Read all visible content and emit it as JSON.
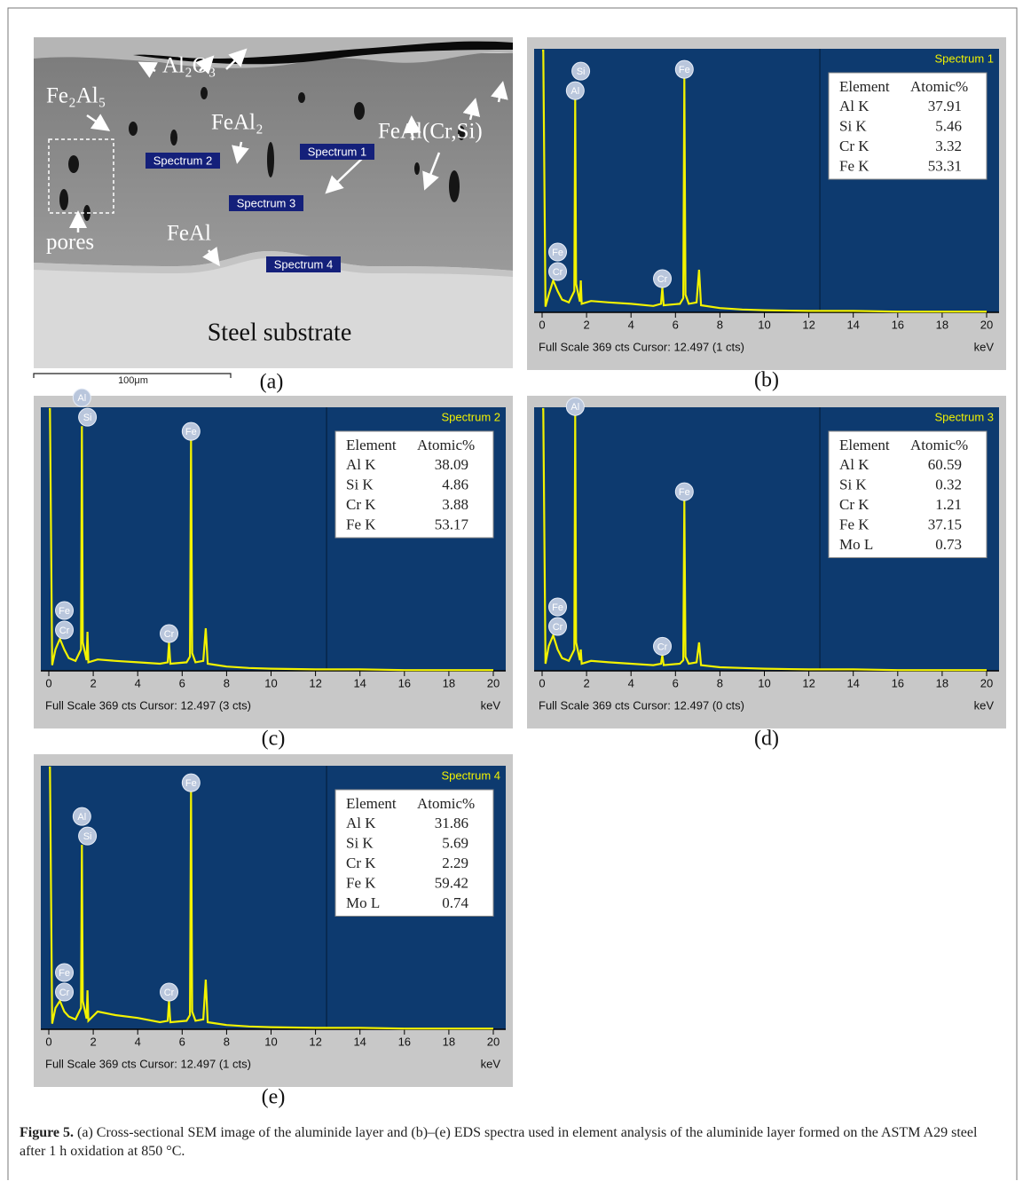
{
  "sem": {
    "phases": {
      "al2o3": "Al₂O₃",
      "fe2al5": "Fe₂Al₅",
      "feal2": "FeAl₂",
      "feal_cr_si": "FeAl(Cr,Si)",
      "pores": "pores",
      "feal": "FeAl",
      "substrate": "Steel substrate"
    },
    "spectrum_boxes": [
      "Spectrum 1",
      "Spectrum 2",
      "Spectrum 3",
      "Spectrum 4"
    ],
    "scale_bar": "100μm",
    "panel_label": "(a)"
  },
  "chart_data": [
    {
      "type": "line",
      "title": "Spectrum 1",
      "panel_label": "(b)",
      "xlabel": "keV",
      "footer": "Full Scale 369 cts Cursor: 12.497 (1 cts)",
      "cursor": 12.497,
      "color": "#f2f200",
      "x": [
        0,
        0.05,
        0.15,
        0.3,
        0.5,
        0.7,
        0.9,
        1.2,
        1.45,
        1.49,
        1.53,
        1.7,
        1.74,
        1.78,
        2.2,
        3,
        4,
        5,
        5.35,
        5.41,
        5.47,
        6.2,
        6.35,
        6.4,
        6.45,
        6.6,
        6.95,
        7.06,
        7.15,
        8,
        9,
        10,
        12,
        14,
        16,
        20
      ],
      "values": [
        369,
        369,
        8,
        25,
        45,
        30,
        18,
        14,
        30,
        300,
        40,
        15,
        45,
        12,
        16,
        14,
        12,
        9,
        12,
        35,
        10,
        12,
        20,
        330,
        25,
        12,
        14,
        60,
        10,
        6,
        4,
        3,
        2,
        2,
        1,
        1
      ],
      "xlim": [
        0,
        20
      ],
      "xticks": [
        0,
        2,
        4,
        6,
        8,
        10,
        12,
        14,
        16,
        18,
        20
      ],
      "ylim": [
        0,
        369
      ],
      "peak_labels": [
        {
          "text": "Cr",
          "x": 0.7
        },
        {
          "text": "Fe",
          "x": 0.7
        },
        {
          "text": "Al",
          "x": 1.49
        },
        {
          "text": "Si",
          "x": 1.74
        },
        {
          "text": "Cr",
          "x": 5.41
        },
        {
          "text": "Fe",
          "x": 6.4
        }
      ],
      "table": {
        "header": [
          "Element",
          "Atomic%"
        ],
        "rows": [
          [
            "Al K",
            37.91
          ],
          [
            "Si K",
            5.46
          ],
          [
            "Cr K",
            3.32
          ],
          [
            "Fe K",
            53.31
          ]
        ]
      }
    },
    {
      "type": "line",
      "title": "Spectrum 2",
      "panel_label": "(c)",
      "xlabel": "keV",
      "footer": "Full Scale 369 cts Cursor: 12.497 (3 cts)",
      "cursor": 12.497,
      "color": "#f2f200",
      "x": [
        0,
        0.05,
        0.15,
        0.3,
        0.5,
        0.7,
        0.9,
        1.2,
        1.45,
        1.49,
        1.53,
        1.7,
        1.74,
        1.78,
        2.2,
        3,
        4,
        5,
        5.35,
        5.41,
        5.47,
        6.2,
        6.35,
        6.4,
        6.45,
        6.6,
        6.95,
        7.06,
        7.15,
        8,
        9,
        10,
        12,
        14,
        16,
        20
      ],
      "values": [
        369,
        369,
        8,
        30,
        45,
        30,
        18,
        14,
        30,
        345,
        40,
        15,
        55,
        12,
        16,
        14,
        12,
        10,
        12,
        40,
        10,
        12,
        20,
        325,
        25,
        12,
        14,
        60,
        10,
        6,
        4,
        3,
        2,
        2,
        1,
        1
      ],
      "xlim": [
        0,
        20
      ],
      "xticks": [
        0,
        2,
        4,
        6,
        8,
        10,
        12,
        14,
        16,
        18,
        20
      ],
      "ylim": [
        0,
        369
      ],
      "peak_labels": [
        {
          "text": "Cr",
          "x": 0.7
        },
        {
          "text": "Fe",
          "x": 0.7
        },
        {
          "text": "Si",
          "x": 1.74
        },
        {
          "text": "Al",
          "x": 1.49
        },
        {
          "text": "Cr",
          "x": 5.41
        },
        {
          "text": "Fe",
          "x": 6.4
        }
      ],
      "table": {
        "header": [
          "Element",
          "Atomic%"
        ],
        "rows": [
          [
            "Al K",
            38.09
          ],
          [
            "Si K",
            4.86
          ],
          [
            "Cr K",
            3.88
          ],
          [
            "Fe K",
            53.17
          ]
        ]
      }
    },
    {
      "type": "line",
      "title": "Spectrum 3",
      "panel_label": "(d)",
      "xlabel": "keV",
      "footer": "Full Scale 369 cts Cursor: 12.497 (0 cts)",
      "cursor": 12.497,
      "color": "#f2f200",
      "x": [
        0,
        0.05,
        0.15,
        0.3,
        0.5,
        0.7,
        0.9,
        1.2,
        1.45,
        1.49,
        1.53,
        1.7,
        1.74,
        1.78,
        2.2,
        3,
        4,
        5,
        5.35,
        5.41,
        5.47,
        6.2,
        6.35,
        6.4,
        6.45,
        6.6,
        6.95,
        7.06,
        7.15,
        8,
        9,
        10,
        12,
        14,
        16,
        20
      ],
      "values": [
        369,
        369,
        10,
        35,
        50,
        30,
        18,
        14,
        30,
        360,
        40,
        15,
        30,
        10,
        14,
        12,
        10,
        8,
        10,
        22,
        8,
        10,
        15,
        240,
        20,
        10,
        12,
        40,
        8,
        5,
        4,
        3,
        2,
        2,
        1,
        1
      ],
      "xlim": [
        0,
        20
      ],
      "xticks": [
        0,
        2,
        4,
        6,
        8,
        10,
        12,
        14,
        16,
        18,
        20
      ],
      "ylim": [
        0,
        369
      ],
      "peak_labels": [
        {
          "text": "Cr",
          "x": 0.7
        },
        {
          "text": "Fe",
          "x": 0.7
        },
        {
          "text": "Al",
          "x": 1.49
        },
        {
          "text": "Cr",
          "x": 5.41
        },
        {
          "text": "Fe",
          "x": 6.4
        }
      ],
      "table": {
        "header": [
          "Element",
          "Atomic%"
        ],
        "rows": [
          [
            "Al K",
            60.59
          ],
          [
            "Si K",
            0.32
          ],
          [
            "Cr K",
            1.21
          ],
          [
            "Fe K",
            37.15
          ],
          [
            "Mo L",
            0.73
          ]
        ]
      }
    },
    {
      "type": "line",
      "title": "Spectrum 4",
      "panel_label": "(e)",
      "xlabel": "keV",
      "footer": "Full Scale 369 cts Cursor: 12.497 (1 cts)",
      "cursor": 12.497,
      "color": "#f2f200",
      "x": [
        0,
        0.05,
        0.15,
        0.3,
        0.5,
        0.7,
        0.9,
        1.2,
        1.45,
        1.49,
        1.53,
        1.7,
        1.74,
        1.78,
        2.2,
        3,
        4,
        5,
        5.35,
        5.41,
        5.47,
        6.2,
        6.35,
        6.4,
        6.45,
        6.6,
        6.95,
        7.06,
        7.15,
        8,
        9,
        10,
        12,
        14,
        16,
        20
      ],
      "values": [
        369,
        369,
        8,
        30,
        40,
        25,
        18,
        14,
        30,
        260,
        40,
        15,
        55,
        12,
        25,
        20,
        16,
        10,
        12,
        40,
        10,
        12,
        20,
        335,
        25,
        12,
        14,
        70,
        10,
        6,
        4,
        3,
        2,
        2,
        1,
        1
      ],
      "xlim": [
        0,
        20
      ],
      "xticks": [
        0,
        2,
        4,
        6,
        8,
        10,
        12,
        14,
        16,
        18,
        20
      ],
      "ylim": [
        0,
        369
      ],
      "peak_labels": [
        {
          "text": "Cr",
          "x": 0.7
        },
        {
          "text": "Fe",
          "x": 0.7
        },
        {
          "text": "Si",
          "x": 1.74
        },
        {
          "text": "Al",
          "x": 1.49
        },
        {
          "text": "Cr",
          "x": 5.41
        },
        {
          "text": "Fe",
          "x": 6.4
        }
      ],
      "table": {
        "header": [
          "Element",
          "Atomic%"
        ],
        "rows": [
          [
            "Al K",
            31.86
          ],
          [
            "Si K",
            5.69
          ],
          [
            "Cr K",
            2.29
          ],
          [
            "Fe K",
            59.42
          ],
          [
            "Mo L",
            0.74
          ]
        ]
      }
    }
  ],
  "caption": {
    "label": "Figure 5.",
    "text": "(a) Cross-sectional SEM image of the aluminide layer and (b)–(e) EDS spectra used in element analysis of the aluminide layer formed on the ASTM A29 steel after 1 h oxidation at 850 °C."
  }
}
